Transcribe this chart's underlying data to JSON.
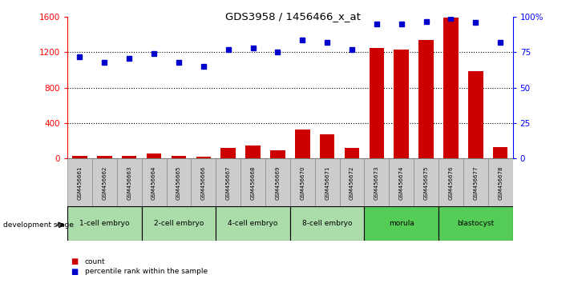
{
  "title": "GDS3958 / 1456466_x_at",
  "samples": [
    "GSM456661",
    "GSM456662",
    "GSM456663",
    "GSM456664",
    "GSM456665",
    "GSM456666",
    "GSM456667",
    "GSM456668",
    "GSM456669",
    "GSM456670",
    "GSM456671",
    "GSM456672",
    "GSM456673",
    "GSM456674",
    "GSM456675",
    "GSM456676",
    "GSM456677",
    "GSM456678"
  ],
  "counts": [
    30,
    25,
    28,
    55,
    30,
    20,
    120,
    145,
    90,
    330,
    275,
    120,
    1250,
    1230,
    1340,
    1590,
    990,
    130
  ],
  "percentiles": [
    72,
    68,
    71,
    74,
    68,
    65,
    77,
    78,
    75,
    84,
    82,
    77,
    95,
    95,
    97,
    99,
    96,
    82
  ],
  "stages": [
    {
      "label": "1-cell embryo",
      "start": 0,
      "end": 3
    },
    {
      "label": "2-cell embryo",
      "start": 3,
      "end": 6
    },
    {
      "label": "4-cell embryo",
      "start": 6,
      "end": 9
    },
    {
      "label": "8-cell embryo",
      "start": 9,
      "end": 12
    },
    {
      "label": "morula",
      "start": 12,
      "end": 15
    },
    {
      "label": "blastocyst",
      "start": 15,
      "end": 18
    }
  ],
  "stage_color_light": "#aaddaa",
  "stage_color_dark": "#55cc55",
  "ylim_left": [
    0,
    1600
  ],
  "ylim_right": [
    0,
    100
  ],
  "yticks_left": [
    0,
    400,
    800,
    1200,
    1600
  ],
  "yticks_right": [
    0,
    25,
    50,
    75,
    100
  ],
  "bar_color": "#cc0000",
  "dot_color": "#0000cc",
  "background_color": "#ffffff",
  "label_box_color": "#cccccc",
  "legend_count_color": "#cc0000",
  "legend_pct_color": "#0000cc"
}
